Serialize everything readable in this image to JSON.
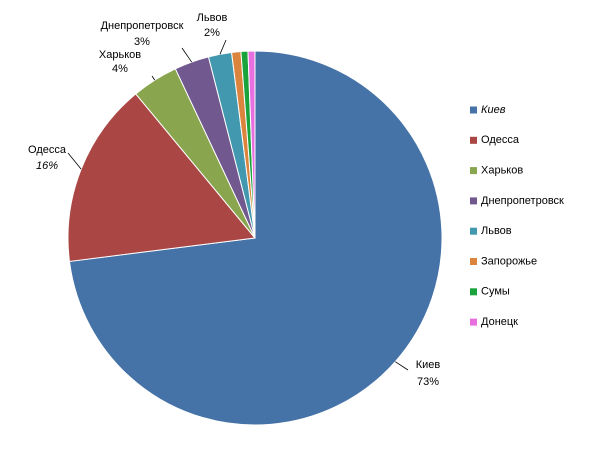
{
  "chart_data": {
    "type": "pie",
    "categories": [
      "Киев",
      "Одесса",
      "Харьков",
      "Днепропетровск",
      "Львов",
      "Запорожье",
      "Сумы",
      "Донецк"
    ],
    "values": [
      73,
      16,
      4,
      3,
      2,
      0.8,
      0.6,
      0.6
    ],
    "value_labels": [
      "73%",
      "16%",
      "4%",
      "3%",
      "2%",
      null,
      null,
      null
    ],
    "colors": [
      "#4572a7",
      "#aa4643",
      "#89a54e",
      "#71588f",
      "#4198af",
      "#db843d",
      "#1aa33b",
      "#e86fe0"
    ],
    "legend": "right"
  }
}
